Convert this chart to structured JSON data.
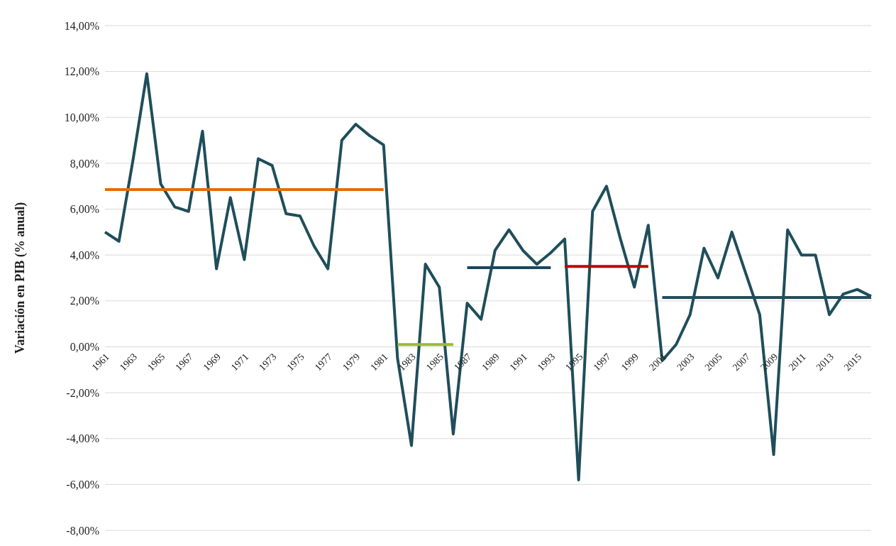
{
  "chart_data": {
    "type": "line",
    "ylabel": "Variación en PIB (% anual)",
    "categories": [
      "1961",
      null,
      "1963",
      null,
      "1965",
      null,
      "1967",
      null,
      "1969",
      null,
      "1971",
      null,
      "1973",
      null,
      "1975",
      null,
      "1977",
      null,
      "1979",
      null,
      "1981",
      null,
      "1983",
      null,
      "1985",
      null,
      "1987",
      null,
      "1989",
      null,
      "1991",
      null,
      "1993",
      null,
      "1995",
      null,
      "1997",
      null,
      "1999",
      null,
      "2001",
      null,
      "2003",
      null,
      "2005",
      null,
      "2007",
      null,
      "2009",
      null,
      "2011",
      null,
      "2013",
      null,
      "2015",
      null
    ],
    "series": [
      {
        "color": "#1f4e5a",
        "values": [
          5.0,
          4.6,
          8.1,
          11.9,
          7.1,
          6.1,
          5.9,
          9.4,
          3.4,
          6.5,
          3.8,
          8.2,
          7.9,
          5.8,
          5.7,
          4.4,
          3.4,
          9.0,
          9.7,
          9.2,
          8.8,
          -0.5,
          -4.3,
          3.6,
          2.6,
          -3.8,
          1.9,
          1.2,
          4.2,
          5.1,
          4.2,
          3.6,
          4.1,
          4.7,
          -5.8,
          5.9,
          7.0,
          4.7,
          2.6,
          5.3,
          -0.6,
          0.1,
          1.4,
          4.3,
          3.0,
          5.0,
          3.2,
          1.4,
          -4.7,
          5.1,
          4.0,
          4.0,
          1.4,
          2.3,
          2.5,
          2.2
        ]
      },
      {
        "color": "#e46c0a",
        "values": [
          6.85,
          6.85,
          6.85,
          6.85,
          6.85,
          6.85,
          6.85,
          6.85,
          6.85,
          6.85,
          6.85,
          6.85,
          6.85,
          6.85,
          6.85,
          6.85,
          6.85,
          6.85,
          6.85,
          6.85,
          6.85,
          null,
          null,
          null,
          null,
          null,
          null,
          null,
          null,
          null,
          null,
          null,
          null,
          null,
          null,
          null,
          null,
          null,
          null,
          null,
          null,
          null,
          null,
          null,
          null,
          null,
          null,
          null,
          null,
          null,
          null,
          null,
          null,
          null,
          null,
          null
        ]
      },
      {
        "color": "#9bbb30",
        "values": [
          null,
          null,
          null,
          null,
          null,
          null,
          null,
          null,
          null,
          null,
          null,
          null,
          null,
          null,
          null,
          null,
          null,
          null,
          null,
          null,
          null,
          0.1,
          0.1,
          0.1,
          0.1,
          0.1,
          null,
          null,
          null,
          null,
          null,
          null,
          null,
          null,
          null,
          null,
          null,
          null,
          null,
          null,
          null,
          null,
          null,
          null,
          null,
          null,
          null,
          null,
          null,
          null,
          null,
          null,
          null,
          null,
          null,
          null
        ]
      },
      {
        "color": "#17485c",
        "values": [
          null,
          null,
          null,
          null,
          null,
          null,
          null,
          null,
          null,
          null,
          null,
          null,
          null,
          null,
          null,
          null,
          null,
          null,
          null,
          null,
          null,
          null,
          null,
          null,
          null,
          null,
          3.45,
          3.45,
          3.45,
          3.45,
          3.45,
          3.45,
          3.45,
          null,
          null,
          null,
          null,
          null,
          null,
          null,
          null,
          null,
          null,
          null,
          null,
          null,
          null,
          null,
          null,
          null,
          null,
          null,
          null,
          null,
          null,
          null
        ]
      },
      {
        "color": "#c00000",
        "values": [
          null,
          null,
          null,
          null,
          null,
          null,
          null,
          null,
          null,
          null,
          null,
          null,
          null,
          null,
          null,
          null,
          null,
          null,
          null,
          null,
          null,
          null,
          null,
          null,
          null,
          null,
          null,
          null,
          null,
          null,
          null,
          null,
          null,
          3.5,
          3.5,
          3.5,
          3.5,
          3.5,
          3.5,
          3.5,
          null,
          null,
          null,
          null,
          null,
          null,
          null,
          null,
          null,
          null,
          null,
          null,
          null,
          null,
          null,
          null
        ]
      },
      {
        "color": "#1f4e5a",
        "values": [
          null,
          null,
          null,
          null,
          null,
          null,
          null,
          null,
          null,
          null,
          null,
          null,
          null,
          null,
          null,
          null,
          null,
          null,
          null,
          null,
          null,
          null,
          null,
          null,
          null,
          null,
          null,
          null,
          null,
          null,
          null,
          null,
          null,
          null,
          null,
          null,
          null,
          null,
          null,
          null,
          2.15,
          2.15,
          2.15,
          2.15,
          2.15,
          2.15,
          2.15,
          2.15,
          2.15,
          2.15,
          2.15,
          2.15,
          2.15,
          2.15,
          2.15,
          2.15
        ]
      }
    ],
    "ylim": [
      -8,
      14
    ],
    "yticks": [
      {
        "value": -8,
        "label": "-8,00%"
      },
      {
        "value": -6,
        "label": "-6,00%"
      },
      {
        "value": -4,
        "label": "-4,00%"
      },
      {
        "value": -2,
        "label": "-2,00%"
      },
      {
        "value": 0,
        "label": "0,00%"
      },
      {
        "value": 2,
        "label": "2,00%"
      },
      {
        "value": 4,
        "label": "4,00%"
      },
      {
        "value": 6,
        "label": "6,00%"
      },
      {
        "value": 8,
        "label": "8,00%"
      },
      {
        "value": 10,
        "label": "10,00%"
      },
      {
        "value": 12,
        "label": "12,00%"
      },
      {
        "value": 14,
        "label": "14,00%"
      }
    ],
    "grid": "y",
    "legend": false,
    "marker": "none",
    "line_style": "solid"
  }
}
